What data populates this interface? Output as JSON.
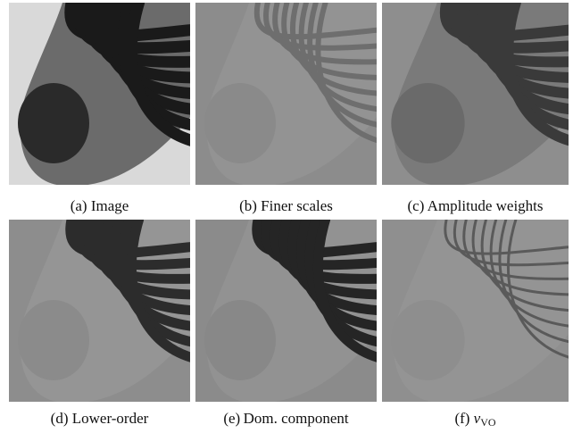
{
  "figure": {
    "panels": [
      {
        "caption": "(a) Image"
      },
      {
        "caption": "(b) Finer scales"
      },
      {
        "caption": "(c) Amplitude weights"
      },
      {
        "caption": "(d) Lower-order"
      },
      {
        "caption": "(e) Dom. component"
      },
      {
        "caption": "(f)",
        "symbol": "v",
        "subscript": "VO"
      }
    ]
  }
}
